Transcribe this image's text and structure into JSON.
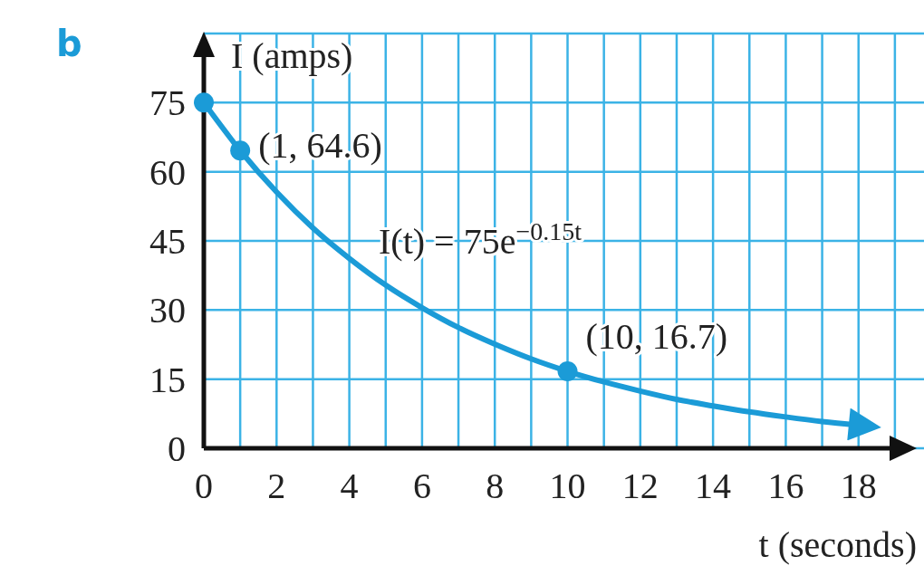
{
  "chart_data": {
    "type": "line",
    "xlabel": "t (seconds)",
    "ylabel": "I (amps)",
    "xlim": [
      0,
      19.8
    ],
    "ylim": [
      0,
      90
    ],
    "xticks": [
      0,
      {
        "value": 1,
        "label": null
      },
      2,
      {
        "value": 3,
        "label": null
      },
      4,
      {
        "value": 5,
        "label": null
      },
      6,
      {
        "value": 7,
        "label": null
      },
      8,
      {
        "value": 9,
        "label": null
      },
      10,
      {
        "value": 11,
        "label": null
      },
      12,
      {
        "value": 13,
        "label": null
      },
      14,
      {
        "value": 15,
        "label": null
      },
      16,
      {
        "value": 17,
        "label": null
      },
      18,
      {
        "value": 19,
        "label": null
      }
    ],
    "yticks": [
      0,
      15,
      30,
      45,
      60,
      75
    ],
    "grid": true,
    "series": [
      {
        "color": "#1b9bd7",
        "marker": "none",
        "x": [
          0,
          1,
          2,
          3,
          4,
          5,
          6,
          7,
          8,
          9,
          10,
          11,
          12,
          13,
          14,
          15,
          16,
          17,
          18
        ],
        "values": [
          75,
          64.6,
          55.6,
          47.8,
          41.2,
          35.4,
          30.5,
          26.2,
          22.6,
          19.4,
          16.7,
          14.4,
          12.4,
          10.6,
          9.2,
          7.9,
          6.8,
          5.8,
          5.0
        ]
      },
      {
        "type": "scatter",
        "color": "#1b9bd7",
        "marker": "circle",
        "x": [
          0,
          1,
          10
        ],
        "values": [
          75,
          64.6,
          16.7
        ]
      }
    ],
    "annotations": [
      "b",
      "I(t) = 75e$^{−0.15t}$",
      {
        "text": "(1, 64.6)",
        "x": 1,
        "y": 64.6
      },
      {
        "text": "(10, 16.7)",
        "x": 10,
        "y": 16.7
      }
    ]
  }
}
